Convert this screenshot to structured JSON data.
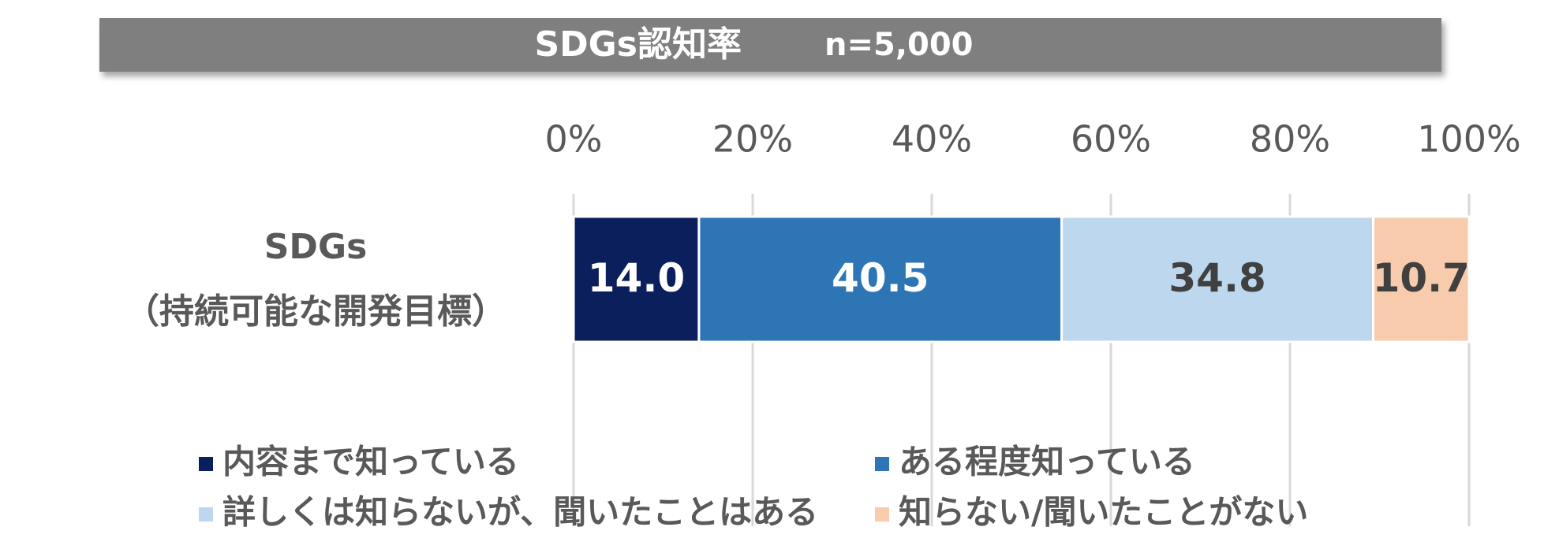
{
  "chart_data": {
    "type": "stacked-bar-horizontal",
    "title": "SDGs認知率",
    "subtitle": "n=5,000",
    "categories": [
      "SDGs\n（持続可能な開発目標）"
    ],
    "series": [
      {
        "name": "内容まで知っている",
        "color": "#0b1f5c",
        "label_color": "#ffffff",
        "values": [
          14.0
        ],
        "value_labels": [
          "14.0"
        ]
      },
      {
        "name": "ある程度知っている",
        "color": "#2e75b6",
        "label_color": "#ffffff",
        "values": [
          40.5
        ],
        "value_labels": [
          "40.5"
        ]
      },
      {
        "name": "詳しくは知らないが、聞いたことはある",
        "color": "#bdd7ee",
        "label_color": "#404040",
        "values": [
          34.8
        ],
        "value_labels": [
          "34.8"
        ]
      },
      {
        "name": "知らない/聞いたことがない",
        "color": "#f8cbad",
        "label_color": "#404040",
        "values": [
          10.7
        ],
        "value_labels": [
          "10.7"
        ]
      }
    ],
    "xlim": [
      0,
      100
    ],
    "xticks": [
      {
        "value": 0,
        "label": "0%"
      },
      {
        "value": 20,
        "label": "20%"
      },
      {
        "value": 40,
        "label": "40%"
      },
      {
        "value": 60,
        "label": "60%"
      },
      {
        "value": 80,
        "label": "80%"
      },
      {
        "value": 100,
        "label": "100%"
      }
    ],
    "grid": true
  }
}
